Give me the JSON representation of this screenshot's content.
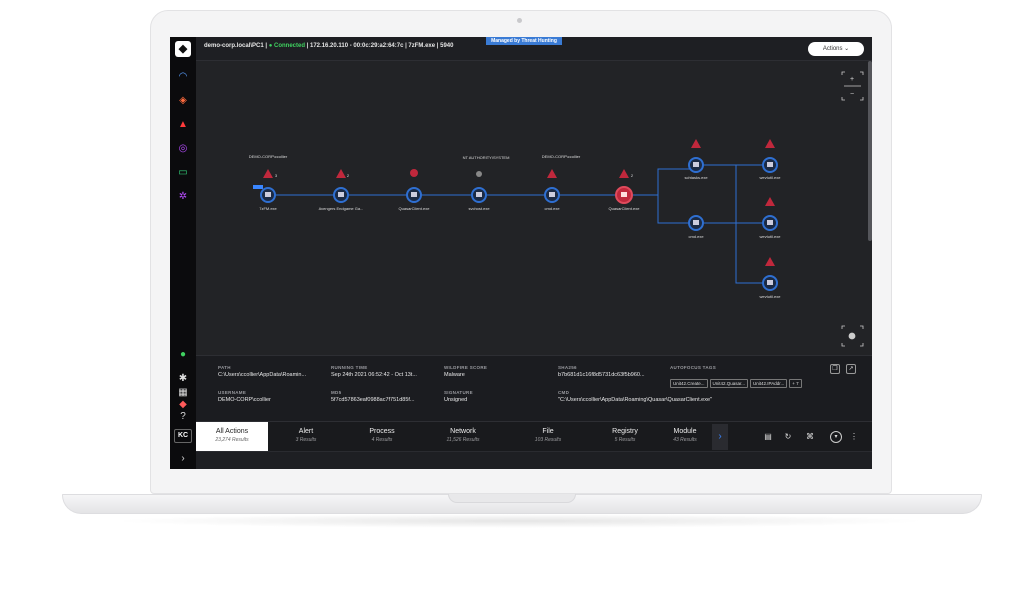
{
  "topbar": {
    "connection_prefix": "demo-corp.local\\PC1 | ",
    "connection_status": "● Connected",
    "connection_suffix": " | 172.16.20.110 - 00:0c:29:a2:64:7c | 7zFM.exe | 5940",
    "managed_badge": "Managed by Threat Hunting",
    "actions_label": "Actions ⌄"
  },
  "rail": {
    "logo": "◆",
    "user_initials": "KC",
    "icons": [
      "dashboard-icon",
      "shield-icon",
      "hat-icon",
      "fingerprint-icon",
      "monitor-icon",
      "network-icon",
      "help-icon",
      "settings-icon",
      "apps-icon",
      "alert-icon",
      "question-icon",
      "expand-icon"
    ]
  },
  "graph": {
    "users": [
      "DEMO-CORP\\ccollier",
      "NT AUTHORITY\\SYSTEM",
      "DEMO-CORP\\ccollier"
    ],
    "nodes": [
      "7zFM.exe",
      "Avengers Endgame Ga...",
      "QuasarClient.exe",
      "svchost.exe",
      "cmd.exe",
      "QuasarClient.exe",
      "schtasks.exe",
      "cmd.exe",
      "wevtutil.exe",
      "wevtutil.exe",
      "wevtutil.exe"
    ],
    "alert_counts": [
      "3",
      "2",
      "2"
    ],
    "zoom_in": "+",
    "zoom_out": "−"
  },
  "detail": {
    "path_label": "PATH",
    "path_value": "C:\\Users\\ccollier\\AppData\\Roamin...",
    "running_label": "RUNNING TIME",
    "running_value": "Sep 24th 2021 06:52:42 - Oct 13t...",
    "wildfire_label": "WILDFIRE SCORE",
    "wildfire_value": "Malware",
    "sha_label": "SHA256",
    "sha_value": "b7b681d1c16f8d5731dc63f5b960...",
    "autofocus_label": "AUTOFOCUS TAGS",
    "tags": [
      "Unit42.Create...",
      "Unit42.Quasar...",
      "Unit42.IPAddr...",
      "+ 7"
    ],
    "username_label": "USERNAME",
    "username_value": "DEMO-CORP\\ccollier",
    "md5_label": "MD5",
    "md5_value": "5f7cd57863eaf0988ac7f751d85f...",
    "signature_label": "SIGNATURE",
    "signature_value": "Unsigned",
    "cmd_label": "CMD",
    "cmd_value": "\"C:\\Users\\ccollier\\AppData\\Roaming\\Quasar\\QuasarClient.exe\""
  },
  "tabs": [
    {
      "label": "All Actions",
      "count": "23,274 Results"
    },
    {
      "label": "Alert",
      "count": "3 Results"
    },
    {
      "label": "Process",
      "count": "4 Results"
    },
    {
      "label": "Network",
      "count": "11,526 Results"
    },
    {
      "label": "File",
      "count": "103 Results"
    },
    {
      "label": "Registry",
      "count": "5 Results"
    },
    {
      "label": "Module",
      "count": "43 Results"
    }
  ],
  "colors": {
    "accent": "#3a86ff",
    "node_ring": "#2f6fd1",
    "alert": "#c0283c",
    "connected": "#3fd160"
  }
}
